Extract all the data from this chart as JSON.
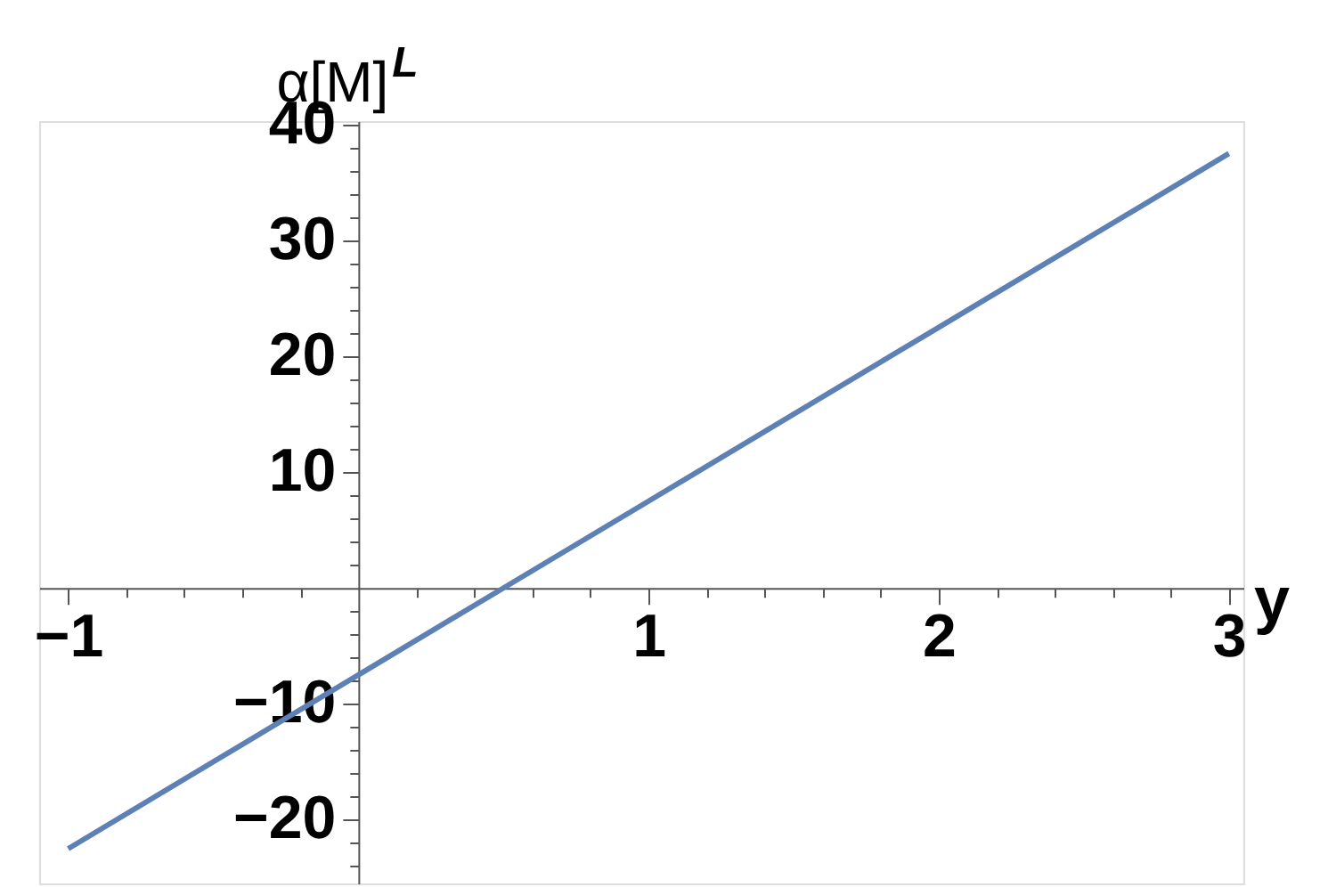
{
  "chart_data": {
    "type": "line",
    "ylabel": "α[M]$^{L}$",
    "xlabel": "y",
    "x": [
      -1,
      0,
      0.5,
      1,
      2,
      3
    ],
    "series": [
      {
        "color": "#5e81b5",
        "values": [
          -22.5,
          -7.5,
          0,
          7.5,
          22.5,
          37.5
        ]
      }
    ],
    "xlim": [
      -1.1,
      3.05
    ],
    "ylim": [
      -25.5,
      40.3
    ],
    "xticks": [
      -1,
      {
        "value": -0.8,
        "label": null
      },
      {
        "value": -0.6,
        "label": null
      },
      {
        "value": -0.4,
        "label": null
      },
      {
        "value": -0.2,
        "label": null
      },
      {
        "value": 0.2,
        "label": null
      },
      {
        "value": 0.4,
        "label": null
      },
      {
        "value": 0.6,
        "label": null
      },
      {
        "value": 0.8,
        "label": null
      },
      1,
      {
        "value": 1.2,
        "label": null
      },
      {
        "value": 1.4,
        "label": null
      },
      {
        "value": 1.6,
        "label": null
      },
      {
        "value": 1.8,
        "label": null
      },
      2,
      {
        "value": 2.2,
        "label": null
      },
      {
        "value": 2.4,
        "label": null
      },
      {
        "value": 2.6,
        "label": null
      },
      {
        "value": 2.8,
        "label": null
      },
      3
    ],
    "yticks": [
      {
        "value": -24,
        "label": null
      },
      {
        "value": -22,
        "label": null
      },
      -20,
      {
        "value": -18,
        "label": null
      },
      {
        "value": -16,
        "label": null
      },
      {
        "value": -14,
        "label": null
      },
      {
        "value": -12,
        "label": null
      },
      -10,
      {
        "value": -8,
        "label": null
      },
      {
        "value": -6,
        "label": null
      },
      {
        "value": -4,
        "label": null
      },
      {
        "value": -2,
        "label": null
      },
      {
        "value": 2,
        "label": null
      },
      {
        "value": 4,
        "label": null
      },
      {
        "value": 6,
        "label": null
      },
      {
        "value": 8,
        "label": null
      },
      10,
      {
        "value": 12,
        "label": null
      },
      {
        "value": 14,
        "label": null
      },
      {
        "value": 16,
        "label": null
      },
      {
        "value": 18,
        "label": null
      },
      20,
      {
        "value": 22,
        "label": null
      },
      {
        "value": 24,
        "label": null
      },
      {
        "value": 26,
        "label": null
      },
      {
        "value": 28,
        "label": null
      },
      30,
      {
        "value": 32,
        "label": null
      },
      {
        "value": 34,
        "label": null
      },
      {
        "value": 36,
        "label": null
      },
      {
        "value": 38,
        "label": null
      },
      40
    ],
    "grid": false,
    "marker": "none",
    "line_style": "solid"
  }
}
